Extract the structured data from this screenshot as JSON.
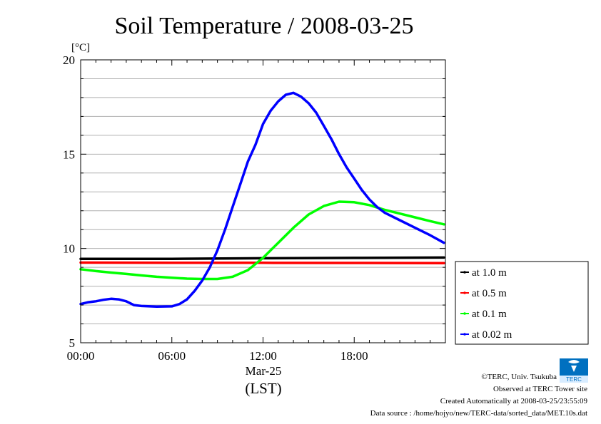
{
  "chart_data": {
    "type": "line",
    "title": "Soil Temperature / 2008-03-25",
    "ylabel": "[°C]",
    "xlabel_date": "Mar-25",
    "xlabel": "(LST)",
    "ylim": [
      5,
      20
    ],
    "xlim": [
      0,
      24
    ],
    "y_ticks": [
      {
        "value": 5,
        "label": "5"
      },
      {
        "value": 10,
        "label": "10"
      },
      {
        "value": 15,
        "label": "15"
      },
      {
        "value": 20,
        "label": "20"
      }
    ],
    "x_ticks": [
      {
        "value": 0,
        "label": "00:00"
      },
      {
        "value": 6,
        "label": "06:00"
      },
      {
        "value": 12,
        "label": "12:00"
      },
      {
        "value": 18,
        "label": "18:00"
      }
    ],
    "grid": true,
    "legend_position": "right-bottom, outside plot",
    "series": [
      {
        "name": "at 1.0 m",
        "color": "#000000",
        "x": [
          0,
          6,
          12,
          18,
          23.9
        ],
        "values": [
          9.45,
          9.45,
          9.48,
          9.5,
          9.52
        ]
      },
      {
        "name": "at 0.5 m",
        "color": "#ff0000",
        "x": [
          0,
          6,
          12,
          18,
          23.9
        ],
        "values": [
          9.25,
          9.24,
          9.24,
          9.23,
          9.22
        ]
      },
      {
        "name": "at 0.1 m",
        "color": "#00ff00",
        "x": [
          0,
          1,
          2,
          3,
          4,
          5,
          6,
          7,
          8,
          9,
          10,
          11,
          12,
          13,
          14,
          15,
          16,
          17,
          18,
          19,
          20,
          21,
          22,
          23,
          23.9
        ],
        "values": [
          8.9,
          8.8,
          8.72,
          8.65,
          8.57,
          8.5,
          8.45,
          8.4,
          8.38,
          8.38,
          8.5,
          8.85,
          9.5,
          10.3,
          11.1,
          11.8,
          12.25,
          12.48,
          12.45,
          12.3,
          12.05,
          11.85,
          11.65,
          11.45,
          11.28
        ]
      },
      {
        "name": "at 0.02 m",
        "color": "#0000ff",
        "x": [
          0,
          0.5,
          1,
          1.5,
          2,
          2.5,
          3,
          3.5,
          4,
          5,
          6,
          6.5,
          7,
          7.5,
          8,
          8.5,
          9,
          9.5,
          10,
          10.5,
          11,
          11.5,
          12,
          12.5,
          13,
          13.5,
          14,
          14.5,
          15,
          15.5,
          16,
          16.5,
          17,
          17.5,
          18,
          18.5,
          19,
          19.5,
          20,
          21,
          22,
          23,
          23.9
        ],
        "values": [
          7.05,
          7.15,
          7.2,
          7.28,
          7.33,
          7.3,
          7.2,
          7.0,
          6.95,
          6.92,
          6.93,
          7.05,
          7.3,
          7.75,
          8.3,
          9.0,
          9.9,
          11.0,
          12.2,
          13.4,
          14.6,
          15.5,
          16.6,
          17.3,
          17.8,
          18.15,
          18.25,
          18.05,
          17.7,
          17.2,
          16.5,
          15.8,
          15.0,
          14.3,
          13.7,
          13.1,
          12.6,
          12.2,
          11.9,
          11.5,
          11.1,
          10.7,
          10.3
        ]
      }
    ]
  },
  "footer": {
    "copyright": "©TERC, Univ. Tsukuba",
    "observed": "Observed at TERC Tower site",
    "created": "Created Automatically at 2008-03-25/23:55:09",
    "source": "Data source : /home/hojyo/new/TERC-data/sorted_data/MET.10s.dat"
  },
  "logo": {
    "text": "TERC"
  }
}
